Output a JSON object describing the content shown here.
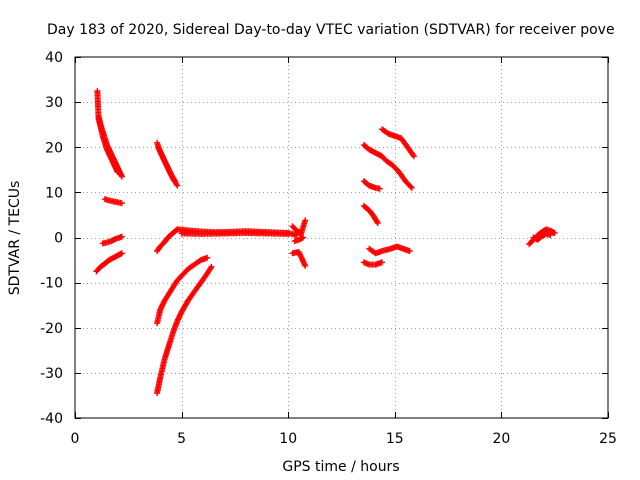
{
  "chart_data": {
    "type": "scatter",
    "title": "Day 183 of 2020, Sidereal Day-to-day VTEC variation (SDTVAR) for receiver pove",
    "xlabel": "GPS time / hours",
    "ylabel": "SDTVAR / TECUs",
    "xlim": [
      0,
      25
    ],
    "ylim": [
      -40,
      40
    ],
    "xticks": [
      0,
      5,
      10,
      15,
      20,
      25
    ],
    "yticks": [
      -40,
      -30,
      -20,
      -10,
      0,
      10,
      20,
      30,
      40
    ],
    "xtick_labels": [
      "0",
      "5",
      "10",
      "15",
      "20",
      "25"
    ],
    "ytick_labels": [
      "-40",
      "-30",
      "-20",
      "-10",
      "0",
      "10",
      "20",
      "30",
      "40"
    ],
    "grid": true,
    "legend": "none",
    "marker": "+",
    "color": "#ff0000",
    "series": [
      {
        "x": [
          1.05,
          1.1,
          1.2,
          1.3,
          1.4,
          1.5,
          1.6,
          1.7,
          1.8,
          1.9,
          2.0,
          2.1,
          2.2
        ],
        "y": [
          32.5,
          27,
          25,
          23.5,
          22,
          20.5,
          19.5,
          18.5,
          17.5,
          16.5,
          15.5,
          14.5,
          13.5
        ]
      },
      {
        "x": [
          1.1,
          1.2,
          1.3,
          1.4,
          1.5,
          1.6,
          1.7,
          1.8,
          1.9,
          2.0
        ],
        "y": [
          26.5,
          24.5,
          22.5,
          21,
          19.5,
          18.5,
          17.5,
          16.5,
          15.5,
          14.5
        ]
      },
      {
        "x": [
          1.4,
          1.6,
          1.8,
          2.0,
          2.2
        ],
        "y": [
          8.5,
          8.2,
          8.0,
          7.8,
          7.6
        ]
      },
      {
        "x": [
          1.3,
          1.5,
          1.7,
          1.9,
          2.1,
          2.2
        ],
        "y": [
          -1.3,
          -1.1,
          -0.8,
          -0.3,
          0.0,
          0.2
        ]
      },
      {
        "x": [
          1.0,
          1.2,
          1.4,
          1.6,
          1.8,
          2.0,
          2.2
        ],
        "y": [
          -7.5,
          -6.5,
          -5.8,
          -5.0,
          -4.5,
          -4.0,
          -3.5
        ]
      },
      {
        "x": [
          3.85,
          4.0,
          4.2,
          4.4,
          4.6,
          4.8
        ],
        "y": [
          21,
          19,
          17,
          15,
          13,
          11.5
        ]
      },
      {
        "x": [
          3.9,
          4.1,
          4.3,
          4.5,
          4.7
        ],
        "y": [
          20,
          18,
          16,
          14,
          12.5
        ]
      },
      {
        "x": [
          3.85,
          4.0,
          4.2,
          4.4,
          4.6,
          4.8
        ],
        "y": [
          -3,
          -2,
          -1,
          0.2,
          1,
          1.8
        ]
      },
      {
        "x": [
          4.8,
          5.5,
          6.0,
          6.5,
          7.0,
          7.5,
          8.0,
          8.5,
          9.0,
          9.5,
          10.0,
          10.4
        ],
        "y": [
          1.8,
          1.5,
          1.3,
          1.2,
          1.2,
          1.3,
          1.4,
          1.3,
          1.2,
          1.1,
          1.0,
          0.5
        ]
      },
      {
        "x": [
          5.0,
          6.0,
          7.0,
          8.0,
          9.0,
          10.0
        ],
        "y": [
          0.9,
          0.8,
          0.9,
          1.0,
          0.9,
          0.8
        ]
      },
      {
        "x": [
          10.2,
          10.4,
          10.6,
          10.8
        ],
        "y": [
          2.5,
          1.5,
          0.8,
          3.8
        ]
      },
      {
        "x": [
          10.3,
          10.5,
          10.7
        ],
        "y": [
          -0.8,
          -0.5,
          0.0
        ]
      },
      {
        "x": [
          10.2,
          10.5,
          10.8
        ],
        "y": [
          -3.5,
          -3.2,
          -6.3
        ]
      },
      {
        "x": [
          3.85,
          4.0,
          4.2,
          4.4,
          4.6,
          4.8,
          5.0,
          5.3,
          5.6,
          5.9,
          6.2
        ],
        "y": [
          -19,
          -16,
          -14,
          -12.5,
          -11,
          -9.5,
          -8.5,
          -7,
          -6,
          -5,
          -4.5
        ]
      },
      {
        "x": [
          3.85,
          4.0,
          4.2,
          4.4,
          4.6,
          4.8,
          5.0,
          5.3,
          5.6,
          5.9,
          6.2,
          6.4
        ],
        "y": [
          -34.5,
          -31,
          -27,
          -24,
          -21,
          -18.5,
          -16.5,
          -14,
          -12,
          -10,
          -8,
          -6.5
        ]
      },
      {
        "x": [
          13.55,
          13.8,
          14.0,
          14.2,
          14.4,
          14.6,
          14.9,
          15.2,
          15.5,
          15.8
        ],
        "y": [
          20.5,
          19.5,
          19,
          18.5,
          18,
          17,
          16,
          14.5,
          12.5,
          11
        ]
      },
      {
        "x": [
          14.4,
          14.7,
          15.0,
          15.3,
          15.6,
          15.9
        ],
        "y": [
          24,
          23,
          22.5,
          22,
          20,
          18
        ]
      },
      {
        "x": [
          13.55,
          13.8,
          14.1,
          14.3
        ],
        "y": [
          12.5,
          11.5,
          11.0,
          10.8
        ]
      },
      {
        "x": [
          13.55,
          13.8,
          14.0,
          14.2
        ],
        "y": [
          7.0,
          6.0,
          4.8,
          3.2
        ]
      },
      {
        "x": [
          13.55,
          13.8,
          14.1,
          14.4
        ],
        "y": [
          -5.5,
          -6.0,
          -6.0,
          -5.5
        ]
      },
      {
        "x": [
          13.8,
          14.1,
          14.4,
          14.8,
          15.1,
          15.4,
          15.7
        ],
        "y": [
          -2.5,
          -3.5,
          -3.0,
          -2.5,
          -2.0,
          -2.5,
          -3.0
        ]
      },
      {
        "x": [
          21.3,
          21.5,
          21.7,
          21.9,
          22.1,
          22.3,
          22.5
        ],
        "y": [
          -1.5,
          -0.5,
          0.5,
          1.2,
          1.8,
          1.5,
          1.0
        ]
      },
      {
        "x": [
          21.5,
          21.7,
          21.9,
          22.1,
          22.3
        ],
        "y": [
          0,
          -0.5,
          0.3,
          0.8,
          0.5
        ]
      }
    ]
  }
}
